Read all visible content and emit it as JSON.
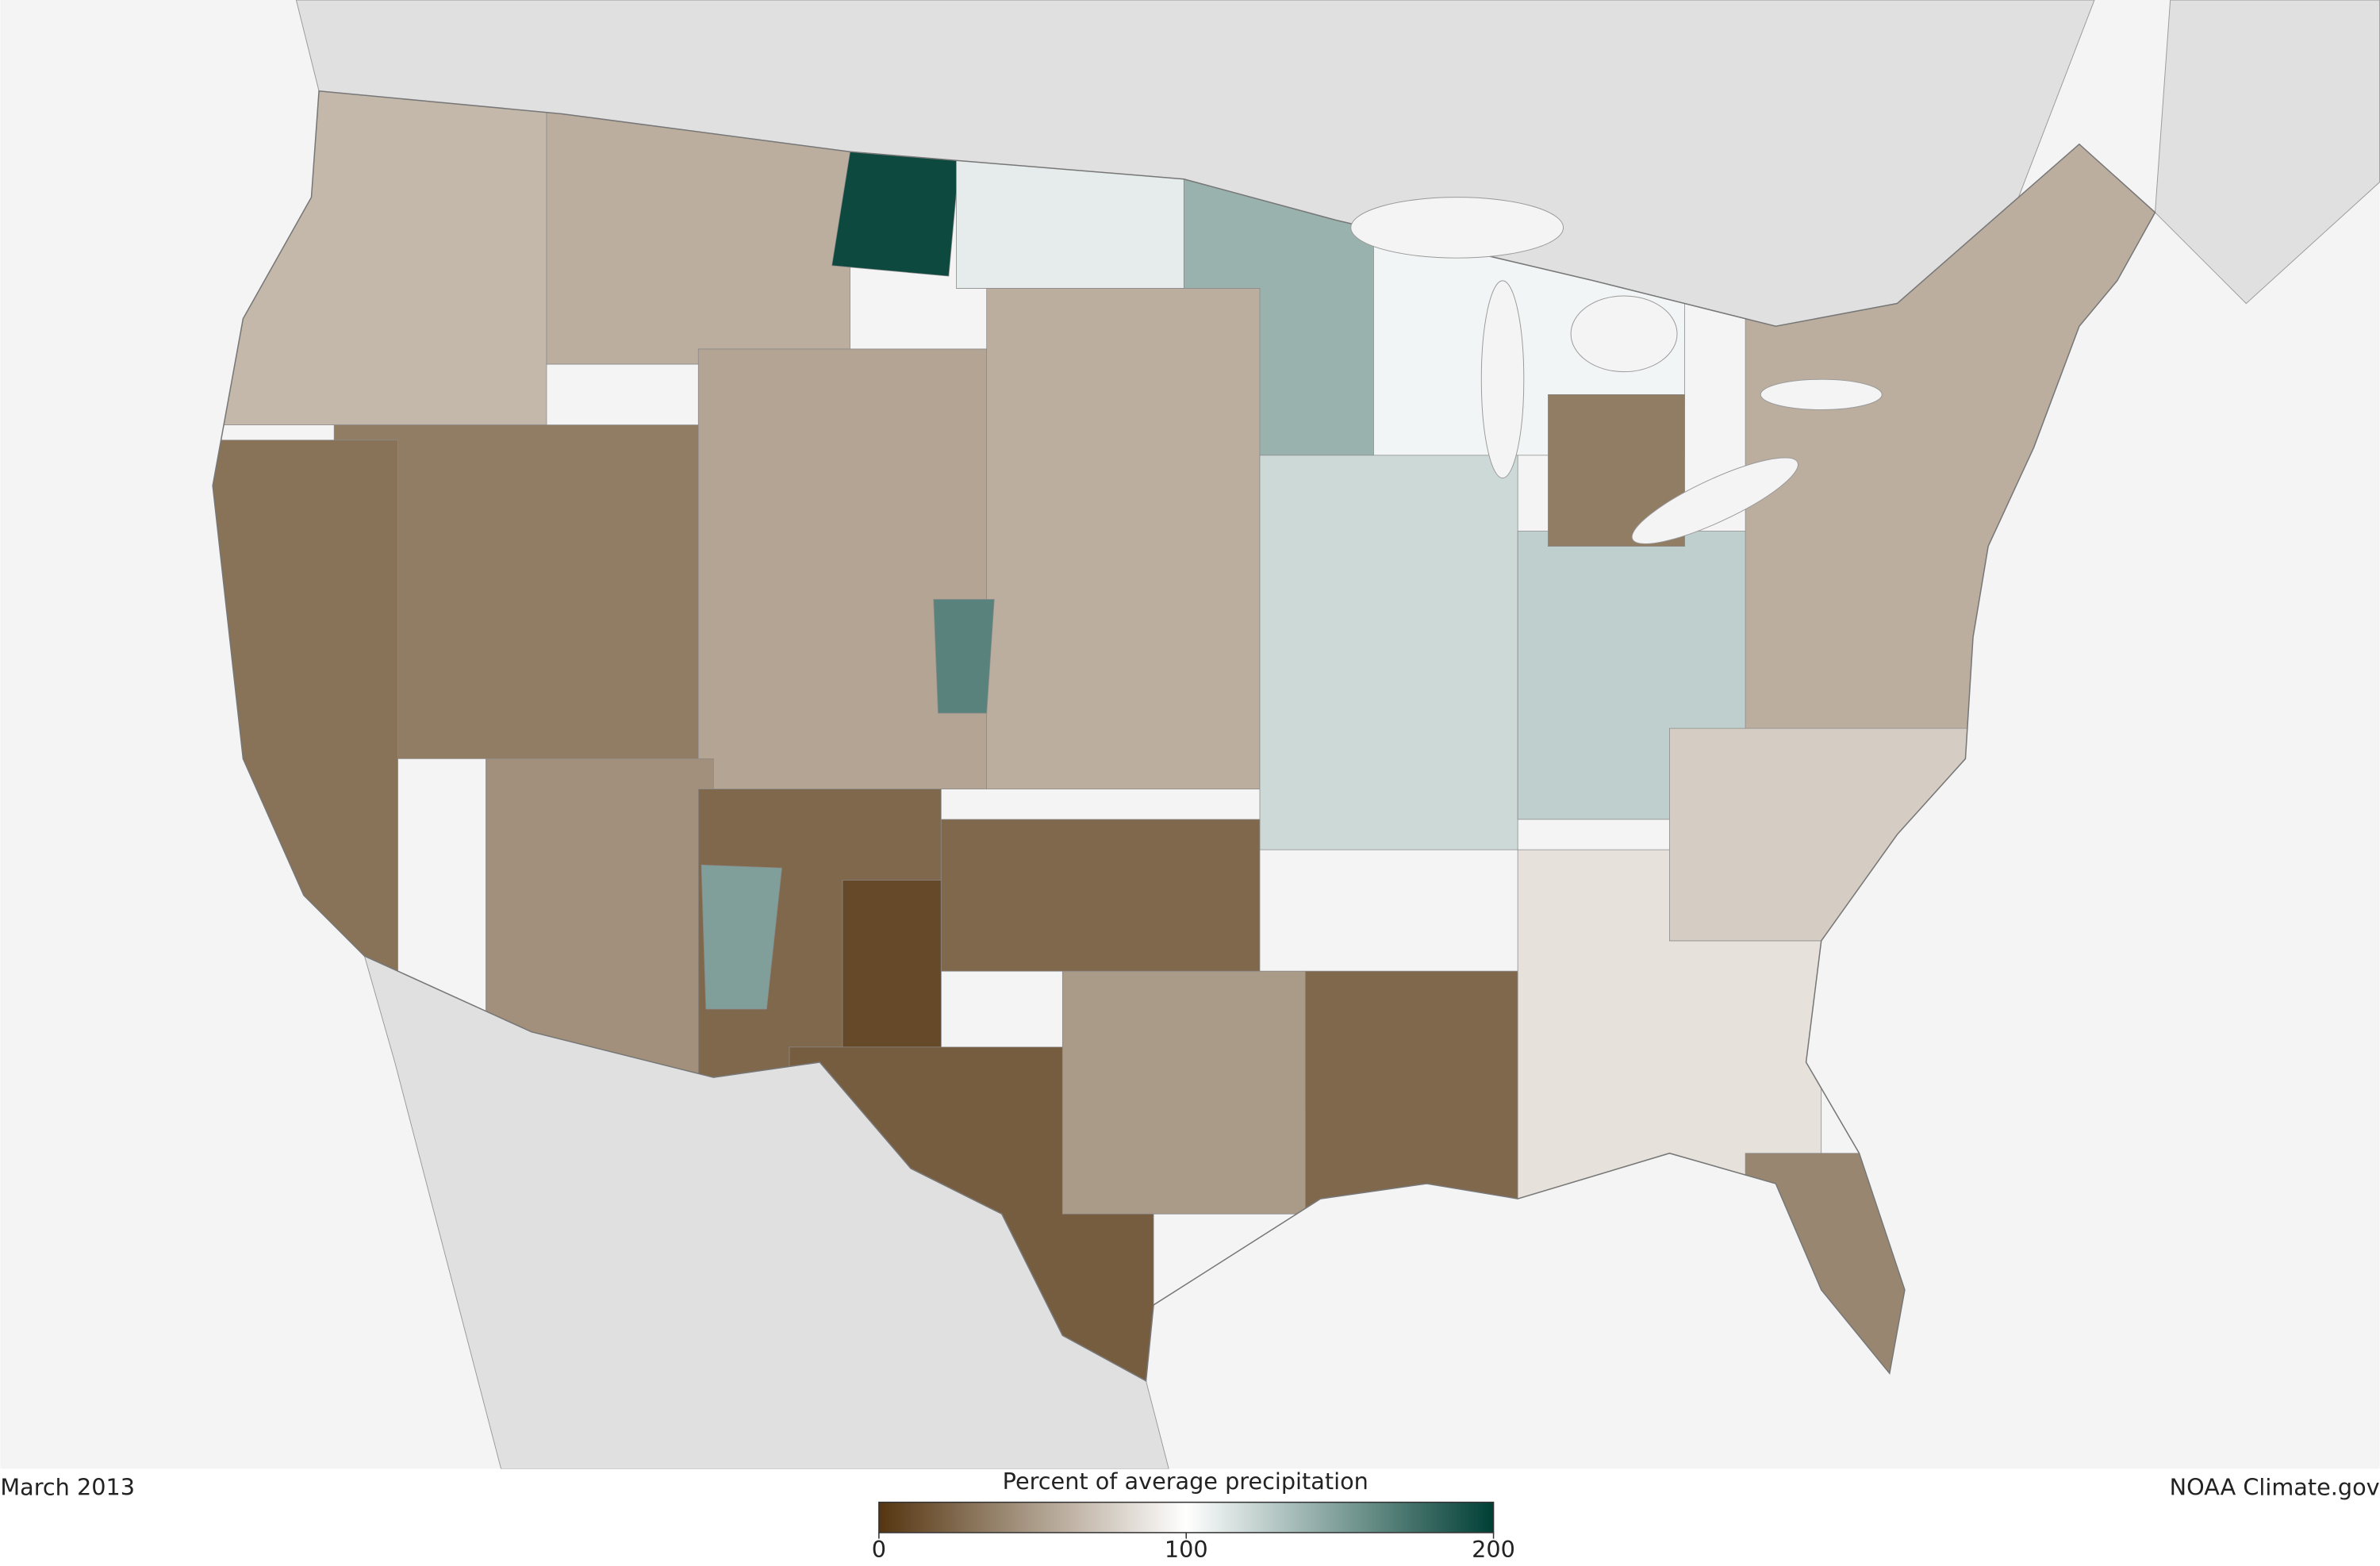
{
  "date": "March 2013",
  "credit": "NOAA Climate.gov",
  "colorbar": {
    "title": "Percent of average precipitation",
    "lim": [
      0,
      200
    ],
    "ticks": [
      0,
      100,
      200
    ],
    "colors": [
      "#553510",
      "#ffffff",
      "#003f35"
    ]
  },
  "regions": [
    65,
    60,
    195,
    110,
    140,
    105,
    35,
    30,
    55,
    60,
    120,
    125,
    45,
    25,
    10,
    150,
    165,
    20,
    50,
    25,
    25,
    85,
    75,
    40,
    60,
    35
  ]
}
